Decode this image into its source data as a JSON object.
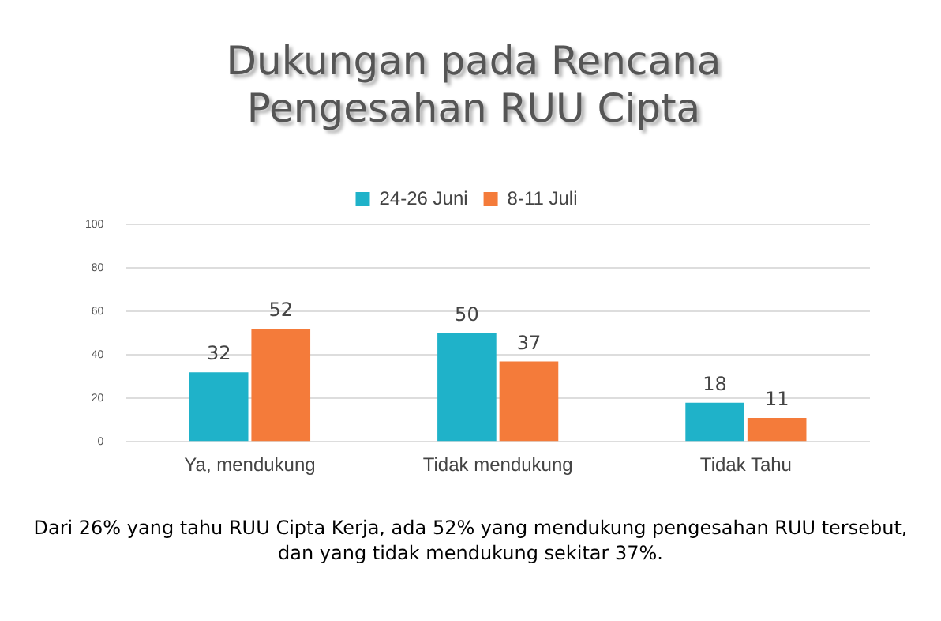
{
  "chart_data": {
    "type": "bar",
    "title": "Dukungan pada Rencana Pengesahan RUU Cipta",
    "categories": [
      "Ya, mendukung",
      "Tidak mendukung",
      "Tidak Tahu"
    ],
    "series": [
      {
        "name": "24-26 Juni",
        "color": "#1fb2c9",
        "values": [
          32,
          50,
          18
        ]
      },
      {
        "name": "8-11 Juli",
        "color": "#f47b3a",
        "values": [
          52,
          37,
          11
        ]
      }
    ],
    "ylim": [
      0,
      100
    ],
    "yticks": [
      0,
      20,
      40,
      60,
      80,
      100
    ],
    "grid": "y",
    "legend": "top",
    "data_labels": true,
    "annotations": [
      "Dari 26% yang tahu RUU Cipta Kerja, ada 52% yang mendukung pengesahan RUU tersebut, dan yang tidak mendukung sekitar 37%."
    ]
  }
}
